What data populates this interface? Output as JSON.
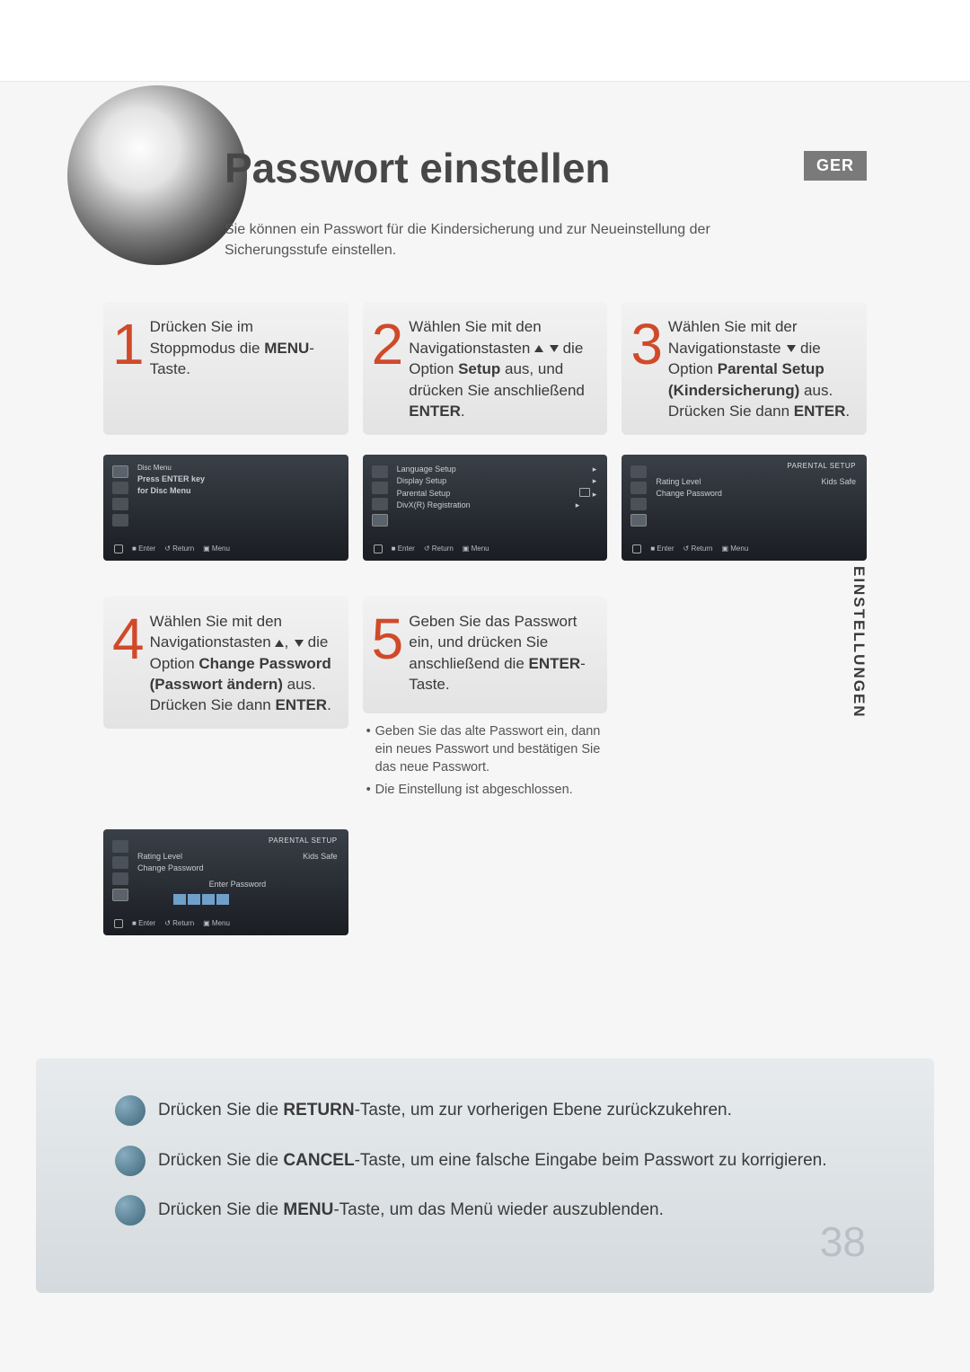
{
  "lang_badge": "GER",
  "side_label": "EINSTELLUNGEN",
  "title": "Passwort einstellen",
  "subtitle": "Sie können ein Passwort für die Kindersicherung und zur Neueinstellung der Sicherungsstufe einstellen.",
  "page_number": "38",
  "colors": {
    "step_num": "#d04a2a",
    "tv_bg_top": "#3a4048",
    "tv_bg_bottom": "#1a1d22",
    "tip_bullet_a": "#88adc0",
    "tip_bullet_b": "#3d6578",
    "pw_box": "#6fa0c9"
  },
  "steps": [
    {
      "num": "1",
      "html": "Drücken Sie im Stoppmodus die <b>MENU</b>-Taste."
    },
    {
      "num": "2",
      "html": "Wählen Sie mit den Navigationstasten <span class='tri-up'></span> <span class='tri-down'></span> die Option <b>Setup</b> aus, und drücken Sie anschließend <b>ENTER</b>."
    },
    {
      "num": "3",
      "html": "Wählen Sie mit der Navigationstaste <span class='tri-down'></span> die Option <b>Parental Setup (Kindersicherung)</b> aus. Drücken Sie dann <b>ENTER</b>."
    },
    {
      "num": "4",
      "html": "Wählen Sie mit den Navigationstasten <span class='tri-up'></span>, <span class='tri-down'></span> die Option <b>Change Password (Passwort ändern)</b> aus. Drücken Sie dann <b>ENTER</b>."
    },
    {
      "num": "5",
      "html": "Geben Sie das Passwort ein, und drücken Sie anschließend die <b>ENTER</b>-Taste."
    }
  ],
  "step5_notes": [
    "Geben Sie das alte Passwort ein, dann ein neues Passwort und bestätigen Sie das neue Passwort.",
    "Die Einstellung ist abgeschlossen."
  ],
  "screens": {
    "s1": {
      "lines": [
        "Press ENTER key",
        "for Disc Menu"
      ],
      "bottom": [
        "Enter",
        "Return",
        "Menu"
      ],
      "icons_label": "Disc Menu"
    },
    "s2": {
      "lines": [
        "Language Setup",
        "Display Setup",
        "Parental Setup",
        "DivX(R) Registration"
      ],
      "bottom": [
        "Enter",
        "Return",
        "Menu"
      ]
    },
    "s3": {
      "title": "PARENTAL SETUP",
      "lines": [
        "Rating Level",
        "Change Password"
      ],
      "right": [
        "Kids Safe"
      ],
      "bottom": [
        "Enter",
        "Return",
        "Menu"
      ]
    },
    "s4": {
      "title": "PARENTAL SETUP",
      "lines": [
        "Rating Level",
        "Change Password"
      ],
      "right": [
        "Kids Safe"
      ],
      "sub": "Enter Password",
      "bottom": [
        "Enter",
        "Return",
        "Menu"
      ]
    }
  },
  "tips": [
    "Drücken Sie die <b>RETURN</b>-Taste, um zur vorherigen Ebene zurückzukehren.",
    "Drücken Sie die <b>CANCEL</b>-Taste, um eine falsche Eingabe beim Passwort zu korrigieren.",
    "Drücken Sie die <b>MENU</b>-Taste, um das Menü wieder auszublenden."
  ]
}
